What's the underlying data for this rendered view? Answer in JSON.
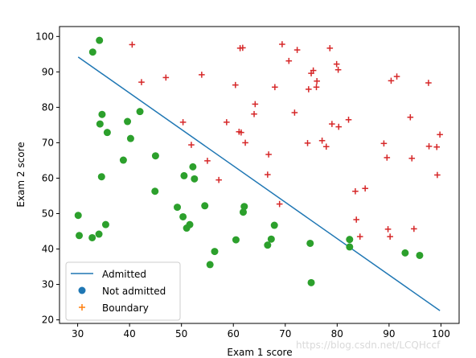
{
  "chart_data": {
    "type": "scatter",
    "title": "",
    "xlabel": "Exam 1 score",
    "ylabel": "Exam 2 score",
    "xlim": [
      26.5,
      103.5
    ],
    "ylim": [
      19.0,
      102.8
    ],
    "xticks": [
      30,
      40,
      50,
      60,
      70,
      80,
      90,
      100
    ],
    "yticks": [
      20,
      30,
      40,
      50,
      60,
      70,
      80,
      90,
      100
    ],
    "grid": false,
    "legend_position": "lower-left",
    "legend": [
      "Admitted",
      "Not admitted",
      "Boundary"
    ],
    "colors": {
      "line": "#1f77b4",
      "dot": "#2ca02c",
      "plus": "#d62728",
      "legend_dot": "#1f77b4",
      "legend_plus": "#ff7f0e"
    },
    "series": [
      {
        "name": "Admitted",
        "kind": "line",
        "x": [
          30.1,
          99.8
        ],
        "y": [
          94.2,
          22.6
        ]
      },
      {
        "name": "Not admitted",
        "kind": "marker-circle",
        "x": [
          34.2,
          32.9,
          34.7,
          34.3,
          39.6,
          42.0,
          35.7,
          40.2,
          30.1,
          38.8,
          34.6,
          45.0,
          44.9,
          52.2,
          50.5,
          49.2,
          52.5,
          50.3,
          54.5,
          61.9,
          62.1,
          30.3,
          32.8,
          34.1,
          35.4,
          51.6,
          51.0,
          56.4,
          60.5,
          55.5,
          67.9,
          67.3,
          66.6,
          74.8,
          82.4,
          82.4,
          93.1,
          95.9,
          75.0
        ],
        "y": [
          98.9,
          95.6,
          78.0,
          75.3,
          76.0,
          78.8,
          72.9,
          71.2,
          49.5,
          65.1,
          60.4,
          66.3,
          56.3,
          63.2,
          60.7,
          51.8,
          59.8,
          49.1,
          52.2,
          50.4,
          52.0,
          43.8,
          43.2,
          44.2,
          46.9,
          46.9,
          45.9,
          39.3,
          42.6,
          35.6,
          46.7,
          42.8,
          41.1,
          41.6,
          42.7,
          40.6,
          38.9,
          38.2,
          30.5
        ]
      },
      {
        "name": "Boundary",
        "kind": "marker-plus",
        "x": [
          40.5,
          42.3,
          47.0,
          50.3,
          51.9,
          53.9,
          55.0,
          57.2,
          58.7,
          60.4,
          61.1,
          61.3,
          61.5,
          61.8,
          62.3,
          64.0,
          64.2,
          66.6,
          66.8,
          68.0,
          68.9,
          69.4,
          70.7,
          71.8,
          72.3,
          74.3,
          74.5,
          75.0,
          75.4,
          76.0,
          76.1,
          77.1,
          77.9,
          78.6,
          79.0,
          79.9,
          80.2,
          80.3,
          82.2,
          83.5,
          83.7,
          84.4,
          85.4,
          89.0,
          89.6,
          89.8,
          90.2,
          90.4,
          91.5,
          94.1,
          94.4,
          94.8,
          97.6,
          97.7,
          99.2,
          99.3,
          99.8
        ],
        "y": [
          97.7,
          87.1,
          88.4,
          75.8,
          69.4,
          89.2,
          64.9,
          59.5,
          75.8,
          86.3,
          73.1,
          96.7,
          72.9,
          96.8,
          70.0,
          78.1,
          80.9,
          61.0,
          66.7,
          85.7,
          52.7,
          97.8,
          93.1,
          78.5,
          96.2,
          69.9,
          85.1,
          89.6,
          90.4,
          85.7,
          87.4,
          70.6,
          68.9,
          96.7,
          75.3,
          92.2,
          90.6,
          74.5,
          76.5,
          56.3,
          48.3,
          43.5,
          57.1,
          69.8,
          65.8,
          45.6,
          43.5,
          87.5,
          88.7,
          77.2,
          65.6,
          45.7,
          86.9,
          69.0,
          68.8,
          60.9,
          72.3
        ]
      }
    ]
  },
  "watermark": "https://blog.csdn.net/LCQHccf"
}
